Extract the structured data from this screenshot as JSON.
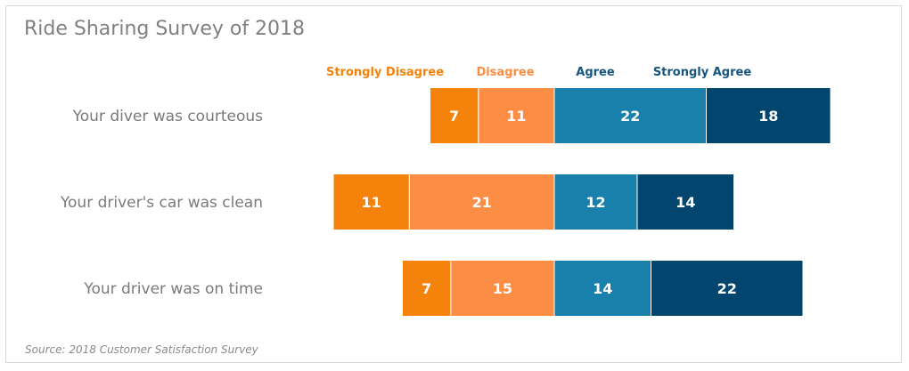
{
  "header": {
    "title": "Ride Sharing Survey of 2018"
  },
  "footer": {
    "source": "Source: 2018 Customer Satisfaction Survey"
  },
  "chart_data": {
    "type": "bar",
    "orientation": "horizontal",
    "stacked": "diverging",
    "title": "Ride Sharing Survey of 2018",
    "categories": [
      "Your diver was courteous",
      "Your driver's car was clean",
      "Your driver was on time"
    ],
    "series": [
      {
        "name": "Strongly Disagree",
        "color": "#f5820a",
        "side": "negative",
        "values": [
          7,
          11,
          7
        ]
      },
      {
        "name": "Disagree",
        "color": "#fc8d45",
        "side": "negative",
        "values": [
          11,
          21,
          15
        ]
      },
      {
        "name": "Agree",
        "color": "#1880ab",
        "side": "positive",
        "values": [
          22,
          12,
          14
        ]
      },
      {
        "name": "Strongly Agree",
        "color": "#02466f",
        "side": "positive",
        "values": [
          18,
          14,
          22
        ]
      }
    ],
    "legend_placement": "top",
    "grid": false,
    "source": "Source: 2018 Customer Satisfaction Survey"
  }
}
